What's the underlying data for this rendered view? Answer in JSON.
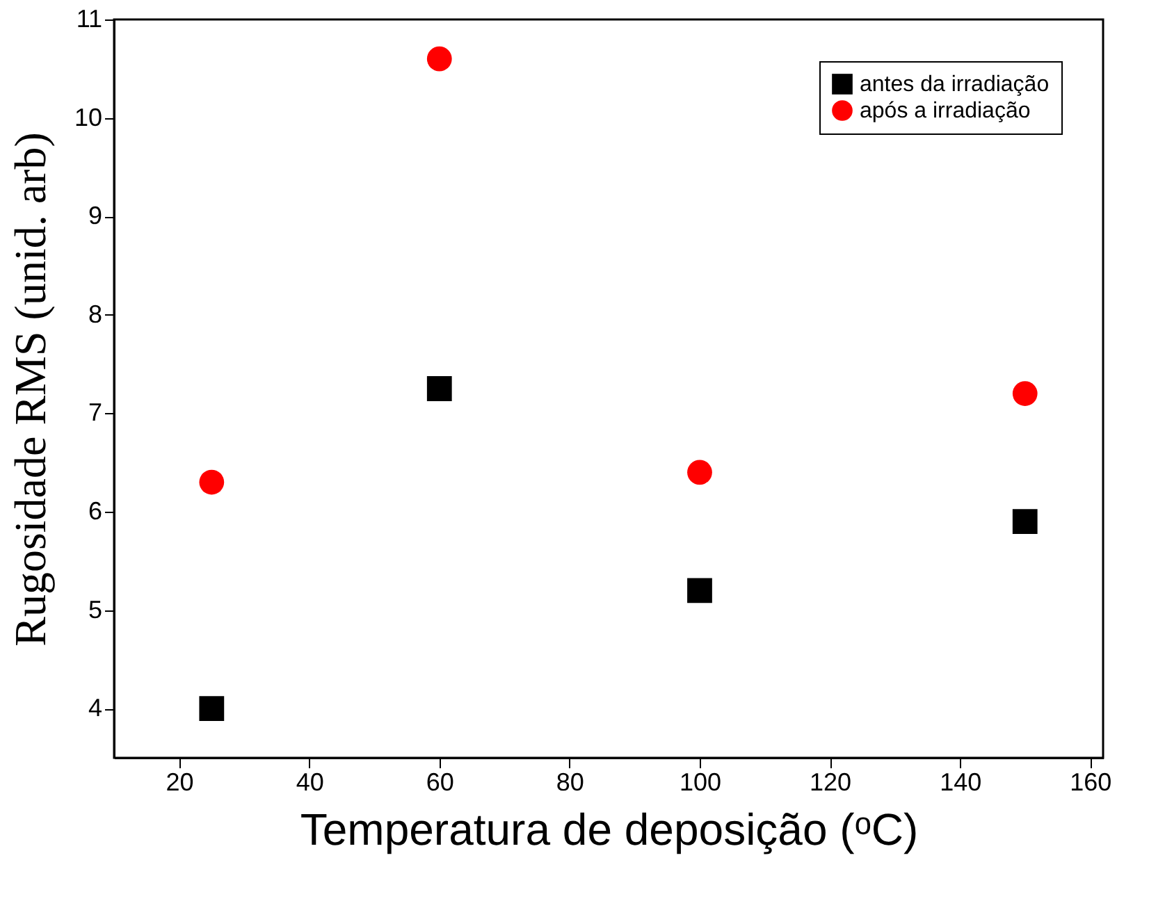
{
  "chart_data": {
    "type": "scatter",
    "xlabel": "Temperatura de deposição (ᵒC)",
    "ylabel": "Rugosidade RMS (unid. arb)",
    "x": [
      25,
      60,
      100,
      150
    ],
    "series": [
      {
        "name": "antes da irradiação",
        "color": "#000000",
        "marker": "square",
        "values": [
          4.0,
          7.25,
          5.2,
          5.9
        ]
      },
      {
        "name": "após a irradiação",
        "color": "#ff0000",
        "marker": "circle",
        "values": [
          6.3,
          10.6,
          6.4,
          7.2
        ]
      }
    ],
    "xlim": [
      10,
      162
    ],
    "xticks": [
      20,
      40,
      60,
      80,
      100,
      120,
      140,
      160
    ],
    "ylim": [
      3.5,
      11
    ],
    "yticks": [
      4,
      5,
      6,
      7,
      8,
      9,
      10,
      11
    ],
    "grid": false,
    "legend": "top right"
  }
}
